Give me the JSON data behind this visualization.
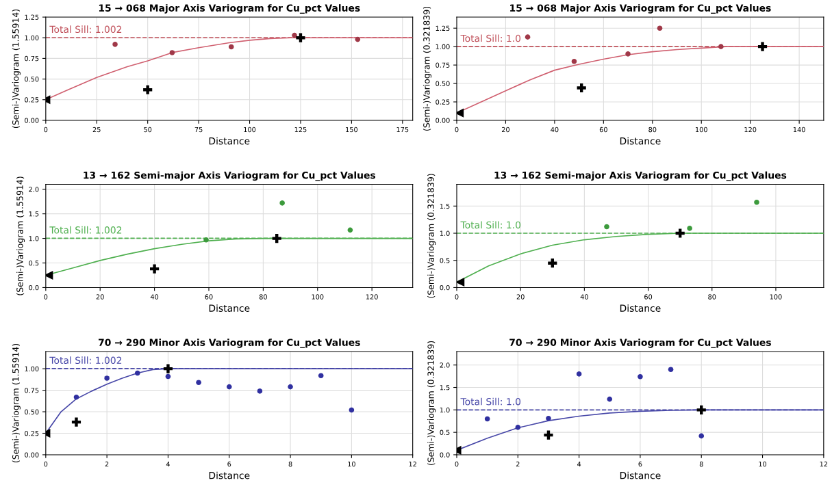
{
  "chart_data": [
    {
      "type": "scatter",
      "title": "15 → 068 Major Axis Variogram for Cu_pct Values",
      "xlabel": "Distance",
      "ylabel": "(Semi-)Variogram (1.55914)",
      "xlim": [
        0,
        180
      ],
      "xticks": [
        0,
        25,
        50,
        75,
        100,
        125,
        150,
        175
      ],
      "ylim": [
        0,
        1.25
      ],
      "yticks": [
        {
          "value": 0,
          "label": "0.00"
        },
        0.25,
        {
          "value": 0.5,
          "label": "0.50"
        },
        0.75,
        {
          "value": 1.0,
          "label": "1.00"
        },
        1.25
      ],
      "grid": true,
      "ref_lines": [
        {
          "axis": "y",
          "value": 1.002,
          "label": "Total Sill: 1.002",
          "color": "#c0505a",
          "line_style": "dashed"
        }
      ],
      "series": [
        {
          "type": "line",
          "color": "#d06070",
          "marker": "none",
          "x": [
            0,
            10,
            25,
            40,
            50,
            62,
            75,
            90,
            100,
            110,
            120,
            180
          ],
          "values": [
            0.25,
            0.36,
            0.52,
            0.65,
            0.72,
            0.82,
            0.88,
            0.94,
            0.97,
            0.99,
            1.0,
            1.0
          ]
        },
        {
          "color": "#a03848",
          "marker": "circle",
          "x": [
            34,
            62,
            91,
            122,
            153
          ],
          "values": [
            0.92,
            0.82,
            0.89,
            1.03,
            0.98
          ]
        },
        {
          "color": "#000000",
          "marker": "cross",
          "x": [
            50,
            125
          ],
          "values": [
            0.37,
            1.0
          ]
        },
        {
          "color": "#000000",
          "marker": "triangle",
          "x": [
            0
          ],
          "values": [
            0.25
          ]
        }
      ]
    },
    {
      "type": "scatter",
      "title": "15 → 068 Major Axis Variogram for Cu_pct Values",
      "xlabel": "Distance",
      "ylabel": "(Semi-)Variogram (0.321839)",
      "xlim": [
        0,
        150
      ],
      "xticks": [
        0,
        20,
        40,
        60,
        80,
        100,
        120,
        140
      ],
      "ylim": [
        0,
        1.4
      ],
      "yticks": [
        {
          "value": 0,
          "label": "0.00"
        },
        0.25,
        {
          "value": 0.5,
          "label": "0.50"
        },
        0.75,
        {
          "value": 1.0,
          "label": "1.00"
        },
        1.25
      ],
      "grid": true,
      "ref_lines": [
        {
          "axis": "y",
          "value": 1.0,
          "label": "Total Sill: 1.0",
          "color": "#c0505a",
          "line_style": "dashed"
        }
      ],
      "series": [
        {
          "type": "line",
          "color": "#d06070",
          "marker": "none",
          "x": [
            0,
            10,
            20,
            30,
            40,
            50,
            60,
            70,
            80,
            90,
            100,
            110,
            150
          ],
          "values": [
            0.1,
            0.25,
            0.4,
            0.55,
            0.68,
            0.76,
            0.83,
            0.89,
            0.93,
            0.96,
            0.98,
            1.0,
            1.0
          ]
        },
        {
          "color": "#a03848",
          "marker": "circle",
          "x": [
            29,
            48,
            70,
            83,
            108
          ],
          "values": [
            1.13,
            0.8,
            0.9,
            1.25,
            1.0
          ]
        },
        {
          "color": "#000000",
          "marker": "cross",
          "x": [
            51,
            125
          ],
          "values": [
            0.44,
            1.0
          ]
        },
        {
          "color": "#000000",
          "marker": "triangle",
          "x": [
            1
          ],
          "values": [
            0.1
          ]
        }
      ]
    },
    {
      "type": "scatter",
      "title": "13 → 162 Semi-major Axis Variogram for Cu_pct Values",
      "xlabel": "Distance",
      "ylabel": "(Semi-)Variogram (1.55914)",
      "xlim": [
        0,
        135
      ],
      "xticks": [
        0,
        20,
        40,
        60,
        80,
        100,
        120
      ],
      "ylim": [
        0,
        2.1
      ],
      "yticks": [
        {
          "value": 0,
          "label": "0.0"
        },
        0.5,
        {
          "value": 1.0,
          "label": "1.0"
        },
        1.5,
        {
          "value": 2.0,
          "label": "2.0"
        }
      ],
      "grid": true,
      "ref_lines": [
        {
          "axis": "y",
          "value": 1.002,
          "label": "Total Sill: 1.002",
          "color": "#50b050",
          "line_style": "dashed"
        }
      ],
      "series": [
        {
          "type": "line",
          "color": "#50b050",
          "marker": "none",
          "x": [
            0,
            10,
            20,
            30,
            40,
            50,
            60,
            70,
            80,
            135
          ],
          "values": [
            0.25,
            0.4,
            0.55,
            0.68,
            0.79,
            0.88,
            0.95,
            0.99,
            1.0,
            1.0
          ]
        },
        {
          "color": "#3c9a3c",
          "marker": "circle",
          "x": [
            59,
            87,
            112
          ],
          "values": [
            0.97,
            1.72,
            1.17
          ]
        },
        {
          "color": "#000000",
          "marker": "cross",
          "x": [
            40,
            85
          ],
          "values": [
            0.38,
            1.0
          ]
        },
        {
          "color": "#000000",
          "marker": "triangle",
          "x": [
            1
          ],
          "values": [
            0.25
          ]
        }
      ]
    },
    {
      "type": "scatter",
      "title": "13 → 162 Semi-major Axis Variogram for Cu_pct Values",
      "xlabel": "Distance",
      "ylabel": "(Semi-)Variogram (0.321839)",
      "xlim": [
        0,
        115
      ],
      "xticks": [
        0,
        20,
        40,
        60,
        80,
        100
      ],
      "ylim": [
        0,
        1.9
      ],
      "yticks": [
        {
          "value": 0,
          "label": "0.0"
        },
        0.5,
        {
          "value": 1.0,
          "label": "1.0"
        },
        1.5
      ],
      "grid": true,
      "ref_lines": [
        {
          "axis": "y",
          "value": 1.0,
          "label": "Total Sill: 1.0",
          "color": "#50b050",
          "line_style": "dashed"
        }
      ],
      "series": [
        {
          "type": "line",
          "color": "#50b050",
          "marker": "none",
          "x": [
            0,
            10,
            20,
            30,
            40,
            50,
            60,
            70,
            115
          ],
          "values": [
            0.1,
            0.4,
            0.62,
            0.78,
            0.88,
            0.94,
            0.98,
            1.0,
            1.0
          ]
        },
        {
          "color": "#3c9a3c",
          "marker": "circle",
          "x": [
            47,
            73,
            94
          ],
          "values": [
            1.12,
            1.09,
            1.57
          ]
        },
        {
          "color": "#000000",
          "marker": "cross",
          "x": [
            30,
            70
          ],
          "values": [
            0.45,
            1.0
          ]
        },
        {
          "color": "#000000",
          "marker": "triangle",
          "x": [
            1
          ],
          "values": [
            0.1
          ]
        }
      ]
    },
    {
      "type": "scatter",
      "title": "70 → 290 Minor Axis Variogram for Cu_pct Values",
      "xlabel": "Distance",
      "ylabel": "(Semi-)Variogram (1.55914)",
      "xlim": [
        0,
        12
      ],
      "xticks": [
        0,
        2,
        4,
        6,
        8,
        10,
        12
      ],
      "ylim": [
        0,
        1.2
      ],
      "yticks": [
        {
          "value": 0,
          "label": "0.00"
        },
        0.25,
        {
          "value": 0.5,
          "label": "0.50"
        },
        0.75,
        {
          "value": 1.0,
          "label": "1.00"
        }
      ],
      "grid": true,
      "ref_lines": [
        {
          "axis": "y",
          "value": 1.002,
          "label": "Total Sill: 1.002",
          "color": "#4848a8",
          "line_style": "dashed"
        }
      ],
      "series": [
        {
          "type": "line",
          "color": "#4848a8",
          "marker": "none",
          "x": [
            0,
            0.5,
            1,
            1.5,
            2,
            2.5,
            3,
            3.5,
            4,
            12
          ],
          "values": [
            0.25,
            0.5,
            0.65,
            0.74,
            0.82,
            0.89,
            0.95,
            0.99,
            1.0,
            1.0
          ]
        },
        {
          "color": "#3030a0",
          "marker": "circle",
          "x": [
            1,
            2,
            3,
            4,
            5,
            6,
            7,
            8,
            9,
            10
          ],
          "values": [
            0.67,
            0.89,
            0.95,
            0.91,
            0.84,
            0.79,
            0.74,
            0.79,
            0.92,
            0.52
          ]
        },
        {
          "color": "#000000",
          "marker": "cross",
          "x": [
            1,
            4
          ],
          "values": [
            0.38,
            1.0
          ]
        },
        {
          "color": "#000000",
          "marker": "triangle",
          "x": [
            0
          ],
          "values": [
            0.25
          ]
        }
      ]
    },
    {
      "type": "scatter",
      "title": "70 → 290 Minor Axis Variogram for Cu_pct Values",
      "xlabel": "Distance",
      "ylabel": "(Semi-)Variogram (0.321839)",
      "xlim": [
        0,
        12
      ],
      "xticks": [
        0,
        2,
        4,
        6,
        8,
        10,
        12
      ],
      "ylim": [
        0,
        2.3
      ],
      "yticks": [
        {
          "value": 0,
          "label": "0.0"
        },
        0.5,
        {
          "value": 1.0,
          "label": "1.0"
        },
        1.5,
        {
          "value": 2.0,
          "label": "2.0"
        }
      ],
      "grid": true,
      "ref_lines": [
        {
          "axis": "y",
          "value": 1.0,
          "label": "Total Sill: 1.0",
          "color": "#4848a8",
          "line_style": "dashed"
        }
      ],
      "series": [
        {
          "type": "line",
          "color": "#4848a8",
          "marker": "none",
          "x": [
            0,
            1,
            2,
            3,
            4,
            5,
            6,
            7,
            8,
            12
          ],
          "values": [
            0.1,
            0.37,
            0.6,
            0.76,
            0.86,
            0.93,
            0.97,
            0.99,
            1.0,
            1.0
          ]
        },
        {
          "color": "#3030a0",
          "marker": "circle",
          "x": [
            1,
            2,
            3,
            4,
            5,
            6,
            7,
            8
          ],
          "values": [
            0.8,
            0.61,
            0.81,
            1.8,
            1.24,
            1.74,
            1.9,
            0.42
          ]
        },
        {
          "color": "#000000",
          "marker": "cross",
          "x": [
            3,
            8
          ],
          "values": [
            0.44,
            1.0
          ]
        },
        {
          "color": "#000000",
          "marker": "triangle",
          "x": [
            0
          ],
          "values": [
            0.1
          ]
        }
      ]
    }
  ]
}
